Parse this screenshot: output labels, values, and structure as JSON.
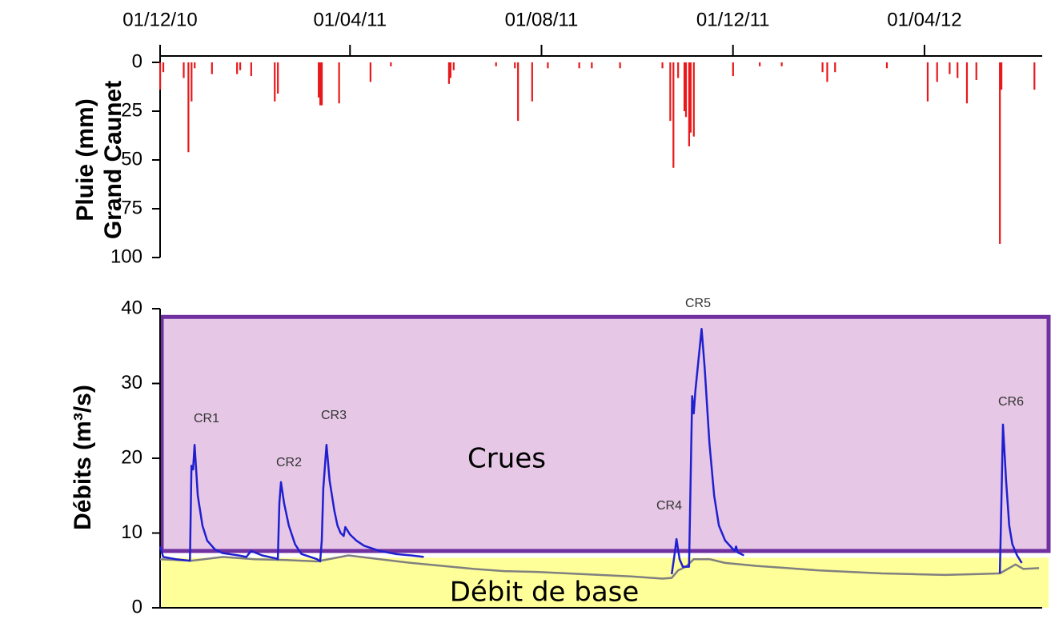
{
  "chart_data": [
    {
      "type": "bar",
      "ylabel": [
        "Pluie (mm)",
        "Grand Caunet"
      ],
      "color": "#e8191a",
      "y_inverted": true,
      "x": [
        0,
        2,
        15,
        18,
        20,
        22,
        33,
        49,
        51,
        58,
        73,
        75,
        101,
        102,
        103,
        114,
        134,
        147,
        184,
        185,
        187,
        214,
        226,
        228,
        237,
        247,
        267,
        275,
        293,
        320,
        325,
        327,
        330,
        334,
        335,
        337,
        338,
        340,
        365,
        382,
        396,
        422,
        425,
        430,
        463,
        489,
        495,
        503,
        508,
        514,
        520,
        535,
        536,
        557
      ],
      "values": [
        14,
        5,
        8,
        46,
        20,
        3,
        6,
        6,
        4,
        7,
        20,
        16,
        18,
        22,
        22,
        21,
        10,
        2,
        11,
        8,
        4,
        2,
        3,
        30,
        20,
        3,
        3,
        3,
        3,
        3,
        30,
        54,
        8,
        25,
        28,
        43,
        36,
        38,
        7,
        2,
        2,
        5,
        10,
        5,
        3,
        20,
        10,
        6,
        8,
        21,
        9,
        93,
        14,
        14
      ],
      "xlim": [
        0,
        562
      ],
      "xticks": [
        {
          "value": 0,
          "label": "01/12/10"
        },
        {
          "value": 121,
          "label": "01/04/11"
        },
        {
          "value": 243,
          "label": "01/08/11"
        },
        {
          "value": 365,
          "label": "01/12/11"
        },
        {
          "value": 487,
          "label": "01/04/12"
        }
      ],
      "ylim": [
        0,
        100
      ],
      "yticks": [
        0,
        25,
        50,
        75,
        100
      ]
    },
    {
      "type": "line",
      "ylabel": "Débits (m³/s)",
      "xlim": [
        0,
        562
      ],
      "ylim": [
        0,
        40
      ],
      "yticks": [
        0,
        10,
        20,
        30,
        40
      ],
      "bands": [
        {
          "label": "Crues",
          "from": 7.6,
          "to": 38.9,
          "color": "#e6c8e6",
          "edge": "#7030a0"
        },
        {
          "label": "Débit de base",
          "from": 0,
          "to": 6.7,
          "color": "#ffff99"
        }
      ],
      "series": [
        {
          "color": "#808080",
          "x": [
            0,
            20,
            40,
            60,
            80,
            100,
            120,
            140,
            160,
            180,
            200,
            220,
            240,
            260,
            280,
            300,
            320,
            326,
            330,
            335,
            340,
            350,
            360,
            380,
            400,
            420,
            440,
            460,
            480,
            500,
            520,
            535,
            545,
            550,
            560
          ],
          "values": [
            6.5,
            6.3,
            6.8,
            6.5,
            6.4,
            6.2,
            7.0,
            6.5,
            6.0,
            5.6,
            5.2,
            4.9,
            4.8,
            4.6,
            4.4,
            4.2,
            3.9,
            4.0,
            5.0,
            5.5,
            6.5,
            6.5,
            6.0,
            5.6,
            5.3,
            5.0,
            4.8,
            4.6,
            4.5,
            4.4,
            4.5,
            4.6,
            5.8,
            5.2,
            5.3
          ]
        },
        {
          "color": "#1f1fd0",
          "x": [
            0,
            2,
            10,
            19,
            20,
            21,
            22,
            24,
            27,
            30,
            35,
            40,
            50,
            55,
            58,
            65,
            74,
            75,
            76,
            77,
            79,
            82,
            86,
            90,
            100,
            102,
            103,
            104,
            106,
            108,
            111,
            113,
            115,
            117,
            118,
            121,
            125,
            130,
            140,
            150,
            160,
            168,
            200,
            326,
            328,
            329,
            331,
            333,
            337,
            339,
            340,
            341,
            345,
            347,
            350,
            353,
            356,
            360,
            363,
            366,
            367,
            368,
            372,
            450,
            535,
            536,
            537,
            539,
            541,
            543,
            546,
            549
          ],
          "values": [
            8.2,
            6.8,
            6.5,
            6.3,
            19,
            18.5,
            21.8,
            15,
            11,
            9,
            7.8,
            7.3,
            7.0,
            6.8,
            7.6,
            7.0,
            6.6,
            6.5,
            14,
            16.8,
            14,
            11,
            8.5,
            7.2,
            6.5,
            6.2,
            9,
            16,
            21.8,
            17,
            13,
            11,
            10,
            9.6,
            10.8,
            9.8,
            9.0,
            8.3,
            7.6,
            7.2,
            7.0,
            6.8,
            null,
            4.5,
            7.5,
            9.2,
            6.5,
            5.5,
            5.5,
            28.3,
            26,
            29,
            37.3,
            32,
            22,
            15,
            11,
            9.0,
            8.3,
            7.6,
            8.2,
            7.4,
            7.0,
            null,
            4.6,
            14,
            24.5,
            17,
            11,
            8.5,
            7.0,
            6.0
          ]
        }
      ],
      "annotations": [
        "CR1",
        "CR2",
        "CR3",
        "CR4",
        "CR5",
        "CR6"
      ]
    }
  ]
}
